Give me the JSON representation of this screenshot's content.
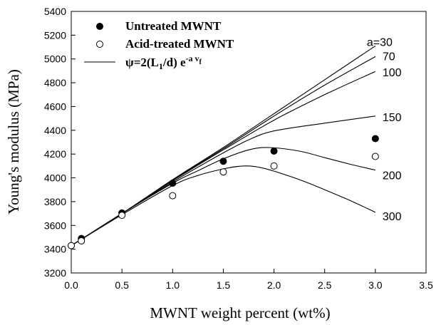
{
  "chart_data": {
    "type": "scatter",
    "xlabel": "MWNT weight percent (wt%)",
    "ylabel": "Young's modulus (MPa)",
    "xlim": [
      0.0,
      3.5
    ],
    "ylim": [
      3200,
      5400
    ],
    "x_ticks": [
      0.0,
      0.5,
      1.0,
      1.5,
      2.0,
      2.5,
      3.0,
      3.5
    ],
    "x_tick_labels": [
      "0.0",
      "0.5",
      "1.0",
      "1.5",
      "2.0",
      "2.5",
      "3.0",
      "3.5"
    ],
    "y_ticks": [
      3200,
      3400,
      3600,
      3800,
      4000,
      4200,
      4400,
      4600,
      4800,
      5000,
      5200,
      5400
    ],
    "y_tick_labels": [
      "3200",
      "3400",
      "3600",
      "3800",
      "4000",
      "4200",
      "4400",
      "4600",
      "4800",
      "5000",
      "5200",
      "5400"
    ],
    "grid": false,
    "legend_position": "top-left",
    "legend": [
      {
        "label": "Untreated MWNT",
        "marker": "filled-circle"
      },
      {
        "label": "Acid-treated MWNT",
        "marker": "open-circle"
      },
      {
        "label_main": "ψ=2(L",
        "label_sub1": "1",
        "label_mid": "/d) e",
        "label_sup": "-a v",
        "label_sup_sub": "f",
        "marker": "line"
      }
    ],
    "series": [
      {
        "name": "Untreated MWNT",
        "kind": "points",
        "marker": "filled-circle",
        "x": [
          0.0,
          0.1,
          0.5,
          1.0,
          1.5,
          2.0,
          3.0
        ],
        "y": [
          3430,
          3490,
          3705,
          3955,
          4140,
          4225,
          4330
        ]
      },
      {
        "name": "Acid-treated MWNT",
        "kind": "points",
        "marker": "open-circle",
        "x": [
          0.0,
          0.1,
          0.5,
          1.0,
          1.5,
          2.0,
          3.0
        ],
        "y": [
          3430,
          3470,
          3685,
          3850,
          4050,
          4100,
          4180
        ]
      }
    ],
    "model_curves": [
      {
        "label": "a=30",
        "x": [
          0.0,
          0.5,
          1.0,
          1.5,
          2.0,
          2.5,
          3.0
        ],
        "y": [
          3430,
          3700,
          3985,
          4255,
          4540,
          4825,
          5110
        ]
      },
      {
        "label": "70",
        "x": [
          0.0,
          0.5,
          1.0,
          1.5,
          2.0,
          2.5,
          3.0
        ],
        "y": [
          3430,
          3700,
          3980,
          4245,
          4520,
          4780,
          5020
        ]
      },
      {
        "label": "100",
        "x": [
          0.0,
          0.5,
          1.0,
          1.5,
          2.0,
          2.5,
          3.0
        ],
        "y": [
          3430,
          3700,
          3975,
          4235,
          4485,
          4700,
          4895
        ]
      },
      {
        "label": "150",
        "x": [
          0.0,
          0.5,
          1.0,
          1.25,
          1.5,
          1.75,
          2.0,
          2.5,
          3.0
        ],
        "y": [
          3430,
          3700,
          3965,
          4090,
          4210,
          4320,
          4395,
          4460,
          4520
        ]
      },
      {
        "label": "200",
        "x": [
          0.0,
          0.5,
          1.0,
          1.25,
          1.5,
          1.75,
          1.95,
          2.25,
          2.5,
          2.75,
          3.0
        ],
        "y": [
          3430,
          3700,
          3955,
          4060,
          4160,
          4235,
          4255,
          4225,
          4170,
          4115,
          4065
        ]
      },
      {
        "label": "300",
        "x": [
          0.0,
          0.5,
          1.0,
          1.25,
          1.5,
          1.7,
          1.9,
          2.25,
          2.5,
          2.75,
          3.0
        ],
        "y": [
          3430,
          3690,
          3935,
          4020,
          4075,
          4100,
          4080,
          3985,
          3900,
          3810,
          3710
        ]
      }
    ]
  }
}
